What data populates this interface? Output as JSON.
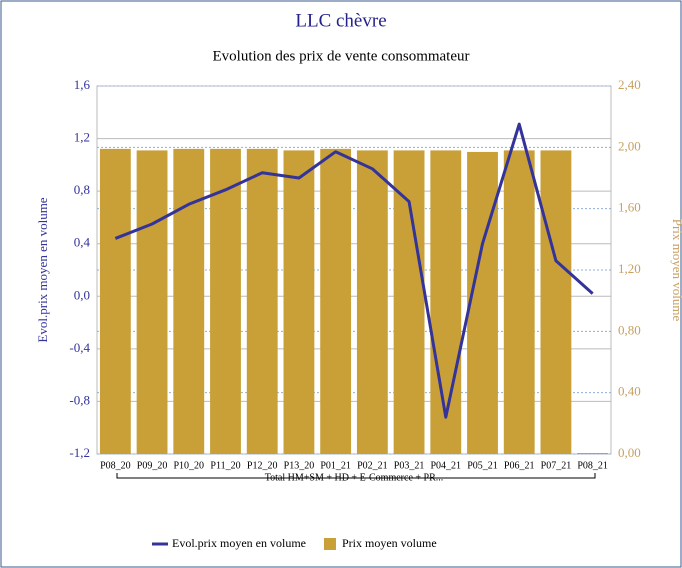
{
  "chart_data": {
    "type": "bar_line",
    "title": "LLC chèvre",
    "subtitle": "Evolution des prix de vente consommateur",
    "categories": [
      "P08_20",
      "P09_20",
      "P10_20",
      "P11_20",
      "P12_20",
      "P13_20",
      "P01_21",
      "P02_21",
      "P03_21",
      "P04_21",
      "P05_21",
      "P06_21",
      "P07_21",
      "P08_21"
    ],
    "group_label": "Total HM+SM + HD + E-Commerce + PR...",
    "y_label": "Evol.prix moyen en volume",
    "y2_label": "Prix moyen volume",
    "ylim": [
      -1.2,
      1.6
    ],
    "yticks": [
      {
        "value": -1.2,
        "label": "-1,2"
      },
      {
        "value": -0.8,
        "label": "-0,8"
      },
      {
        "value": -0.4,
        "label": "-0,4"
      },
      {
        "value": 0,
        "label": "0,0"
      },
      {
        "value": 0.4,
        "label": "0,4"
      },
      {
        "value": 0.8,
        "label": "0,8"
      },
      {
        "value": 1.2,
        "label": "1,2"
      },
      {
        "value": 1.6,
        "label": "1,6"
      }
    ],
    "y2lim": [
      0,
      2.4
    ],
    "y2ticks": [
      {
        "value": 0,
        "label": "0,00"
      },
      {
        "value": 0.4,
        "label": "0,40"
      },
      {
        "value": 0.8,
        "label": "0,80"
      },
      {
        "value": 1.2,
        "label": "1,20"
      },
      {
        "value": 1.6,
        "label": "1,60"
      },
      {
        "value": 2.0,
        "label": "2,00"
      },
      {
        "value": 2.4,
        "label": "2,40"
      }
    ],
    "series": [
      {
        "name": "Evol.prix moyen en volume",
        "kind": "line",
        "color": "#33339a",
        "values": [
          0.44,
          0.55,
          0.7,
          0.81,
          0.94,
          0.9,
          1.1,
          0.97,
          0.72,
          -0.92,
          0.4,
          1.31,
          0.27,
          0.02
        ]
      },
      {
        "name": "Prix moyen volume",
        "kind": "bar",
        "axis": "y2",
        "color": "#c9a038",
        "values": [
          1.99,
          1.98,
          1.99,
          1.99,
          1.99,
          1.98,
          1.99,
          1.98,
          1.98,
          1.98,
          1.97,
          1.98,
          1.98,
          0
        ]
      }
    ],
    "grid": true
  }
}
